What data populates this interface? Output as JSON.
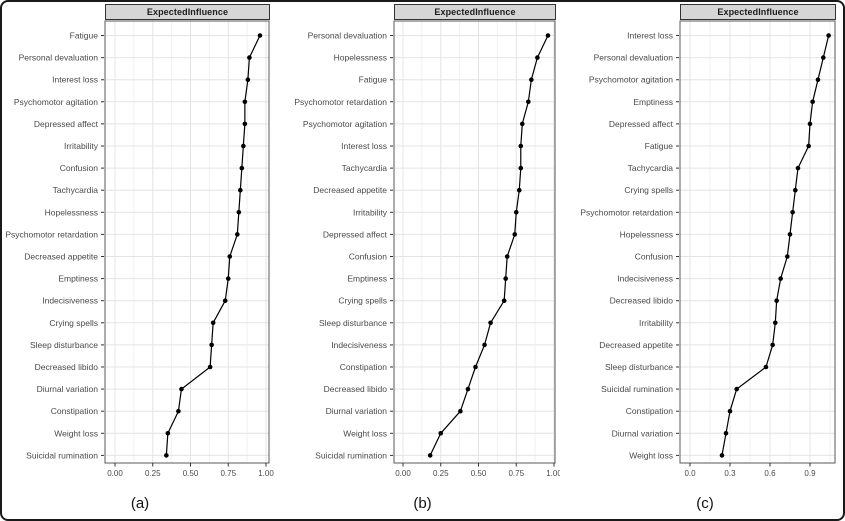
{
  "figure": {
    "strip_title": "ExpectedInfluence",
    "captions": [
      "(a)",
      "(b)",
      "(c)"
    ],
    "colors": {
      "background": "#ffffff",
      "strip_bg": "#d6d6d6",
      "strip_border": "#333333",
      "panel_border": "#595959",
      "grid_major": "#e4e4e4",
      "grid_minor": "#f1f1f1",
      "axis_text": "#4a4a4a",
      "tick_mark": "#333333",
      "data": "#000000",
      "outer_border": "#1a1a1a"
    }
  },
  "chart_data": [
    {
      "type": "line",
      "title": "ExpectedInfluence",
      "caption": "(a)",
      "xlabel": "",
      "ylabel": "",
      "legend": "none",
      "grid": "on",
      "x_tick_labels": [
        "0.00",
        "0.25",
        "0.50",
        "0.75",
        "1.00"
      ],
      "x_tick_values": [
        0,
        0.25,
        0.5,
        0.75,
        1.0
      ],
      "x_minor_ticks": [
        0.125,
        0.375,
        0.625,
        0.875
      ],
      "xlim": [
        -0.07,
        1.02
      ],
      "categories": [
        "Fatigue",
        "Personal devaluation",
        "Interest loss",
        "Psychomotor agitation",
        "Depressed affect",
        "Irritability",
        "Confusion",
        "Tachycardia",
        "Hopelessness",
        "Psychomotor retardation",
        "Decreased appetite",
        "Emptiness",
        "Indecisiveness",
        "Crying spells",
        "Sleep disturbance",
        "Decreased libido",
        "Diurnal variation",
        "Constipation",
        "Weight loss",
        "Suicidal rumination"
      ],
      "values": [
        0.96,
        0.89,
        0.88,
        0.86,
        0.86,
        0.85,
        0.84,
        0.83,
        0.82,
        0.81,
        0.76,
        0.75,
        0.73,
        0.65,
        0.64,
        0.63,
        0.44,
        0.42,
        0.35,
        0.34
      ]
    },
    {
      "type": "line",
      "title": "ExpectedInfluence",
      "caption": "(b)",
      "xlabel": "",
      "ylabel": "",
      "legend": "none",
      "grid": "on",
      "x_tick_labels": [
        "0.00",
        "0.25",
        "0.50",
        "0.75",
        "1.00"
      ],
      "x_tick_values": [
        0,
        0.25,
        0.5,
        0.75,
        1.0
      ],
      "x_minor_ticks": [
        0.125,
        0.375,
        0.625,
        0.875
      ],
      "xlim": [
        -0.06,
        1.01
      ],
      "categories": [
        "Personal devaluation",
        "Hopelessness",
        "Fatigue",
        "Psychomotor retardation",
        "Psychomotor agitation",
        "Interest loss",
        "Tachycardia",
        "Decreased appetite",
        "Irritability",
        "Depressed affect",
        "Confusion",
        "Emptiness",
        "Crying spells",
        "Sleep disturbance",
        "Indecisiveness",
        "Constipation",
        "Decreased libido",
        "Diurnal variation",
        "Weight loss",
        "Suicidal rumination"
      ],
      "values": [
        0.96,
        0.89,
        0.85,
        0.83,
        0.79,
        0.78,
        0.78,
        0.77,
        0.75,
        0.74,
        0.69,
        0.68,
        0.67,
        0.58,
        0.54,
        0.48,
        0.43,
        0.38,
        0.25,
        0.18
      ]
    },
    {
      "type": "line",
      "title": "ExpectedInfluence",
      "caption": "(c)",
      "xlabel": "",
      "ylabel": "",
      "legend": "none",
      "grid": "on",
      "x_tick_labels": [
        "0.0",
        "0.3",
        "0.6",
        "0.9"
      ],
      "x_tick_values": [
        0,
        0.3,
        0.6,
        0.9
      ],
      "x_minor_ticks": [
        0.15,
        0.45,
        0.75,
        1.05
      ],
      "xlim": [
        -0.08,
        1.09
      ],
      "categories": [
        "Interest loss",
        "Personal devaluation",
        "Psychomotor agitation",
        "Emptiness",
        "Depressed affect",
        "Fatigue",
        "Tachycardia",
        "Crying spells",
        "Psychomotor retardation",
        "Hopelessness",
        "Confusion",
        "Indecisiveness",
        "Decreased libido",
        "Irritability",
        "Decreased appetite",
        "Sleep disturbance",
        "Suicidal rumination",
        "Constipation",
        "Diurnal variation",
        "Weight loss"
      ],
      "values": [
        1.04,
        1.0,
        0.96,
        0.92,
        0.9,
        0.89,
        0.81,
        0.79,
        0.77,
        0.75,
        0.73,
        0.68,
        0.65,
        0.64,
        0.62,
        0.57,
        0.35,
        0.3,
        0.27,
        0.24
      ]
    }
  ]
}
